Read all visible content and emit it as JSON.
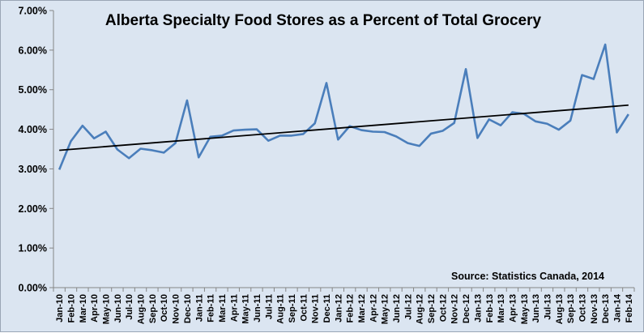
{
  "chart_data": {
    "type": "line",
    "title": "Alberta Specialty Food Stores as a Percent of Total Grocery",
    "source_note": "Source: Statistics Canada, 2014",
    "xlabel": "",
    "ylabel": "",
    "ylim": [
      0,
      7
    ],
    "y_ticks": [
      "0.00%",
      "1.00%",
      "2.00%",
      "3.00%",
      "4.00%",
      "5.00%",
      "6.00%",
      "7.00%"
    ],
    "grid": false,
    "legend": "none",
    "categories": [
      "Jan-10",
      "Feb-10",
      "Mar-10",
      "Apr-10",
      "May-10",
      "Jun-10",
      "Jul-10",
      "Aug-10",
      "Sep-10",
      "Oct-10",
      "Nov-10",
      "Dec-10",
      "Jan-11",
      "Feb-11",
      "Mar-11",
      "Apr-11",
      "May-11",
      "Jun-11",
      "Jul-11",
      "Aug-11",
      "Sep-11",
      "Oct-11",
      "Nov-11",
      "Dec-11",
      "Jan-12",
      "Feb-12",
      "Mar-12",
      "Apr-12",
      "May-12",
      "Jun-12",
      "Jul-12",
      "Aug-12",
      "Sep-12",
      "Oct-12",
      "Nov-12",
      "Dec-12",
      "Jan-13",
      "Feb-13",
      "Mar-13",
      "Apr-13",
      "May-13",
      "Jun-13",
      "Jul-13",
      "Aug-13",
      "Sep-13",
      "Oct-13",
      "Nov-13",
      "Dec-13",
      "Jan-14",
      "Feb-14"
    ],
    "series": [
      {
        "values": [
          2.98,
          3.7,
          4.09,
          3.77,
          3.94,
          3.49,
          3.27,
          3.51,
          3.47,
          3.41,
          3.65,
          4.73,
          3.29,
          3.81,
          3.84,
          3.97,
          3.99,
          4.0,
          3.71,
          3.84,
          3.84,
          3.88,
          4.15,
          5.17,
          3.74,
          4.08,
          3.98,
          3.94,
          3.93,
          3.82,
          3.65,
          3.58,
          3.89,
          3.96,
          4.16,
          5.52,
          3.78,
          4.25,
          4.1,
          4.43,
          4.39,
          4.2,
          4.14,
          3.99,
          4.22,
          5.37,
          5.27,
          6.14,
          3.92,
          4.38
        ],
        "color": "#4a7ebb"
      }
    ],
    "trendline": {
      "start": 3.47,
      "end": 4.61,
      "color": "#000000"
    }
  }
}
